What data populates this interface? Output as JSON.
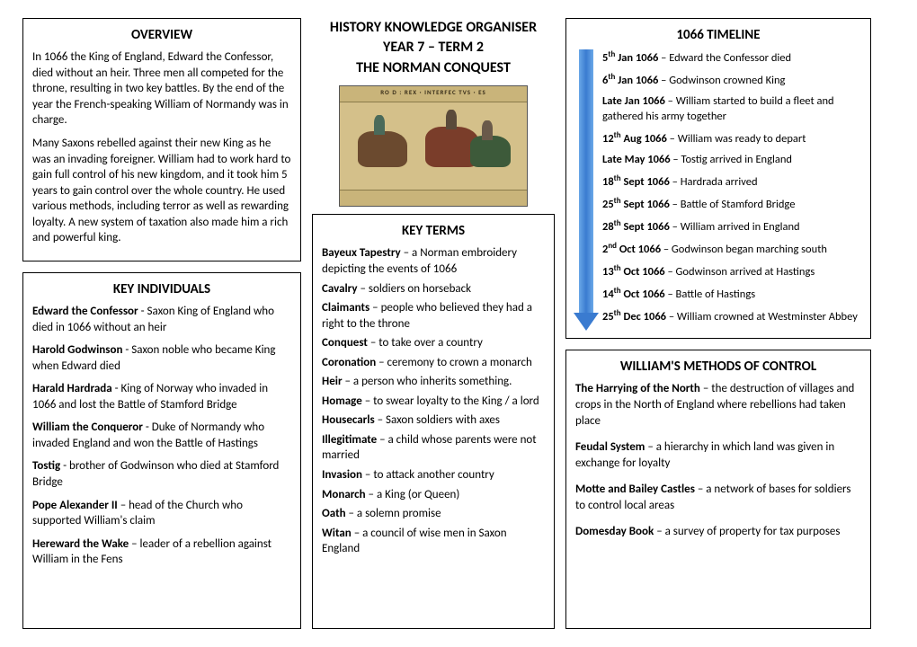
{
  "overview": {
    "heading": "OVERVIEW",
    "p1": "In 1066 the King of England, Edward the Confessor, died without an heir.  Three men all competed for the throne, resulting in two key battles.  By the end of the year the French-speaking William of Normandy was in charge.",
    "p2": "Many Saxons rebelled against their new King as he was an invading foreigner.  William had to work hard to gain full control of his new kingdom, and it took him 5 years to gain control over the whole country.  He used various methods, including terror as well as rewarding loyalty.  A new system of taxation also made him a rich and powerful king."
  },
  "title": {
    "l1": "HISTORY KNOWLEDGE ORGANISER",
    "l2": "YEAR 7 – TERM 2",
    "l3": "THE NORMAN CONQUEST",
    "tapestry_caption": "RO   D : REX · INTERFEC   TVS · ES"
  },
  "key_individuals": {
    "heading": "KEY INDIVIDUALS",
    "items": [
      {
        "n": "Edward the Confessor",
        "d": " - Saxon King of England who died in 1066 without an heir"
      },
      {
        "n": "Harold Godwinson",
        "d": " - Saxon noble who became King when Edward died"
      },
      {
        "n": "Harald Hardrada",
        "d": " - King of Norway who invaded in 1066 and lost the Battle of Stamford Bridge"
      },
      {
        "n": "William the Conqueror",
        "d": " - Duke of Normandy who invaded England and won the Battle of Hastings"
      },
      {
        "n": "Tostig",
        "d": " - brother of Godwinson who died at Stamford Bridge"
      },
      {
        "n": "Pope Alexander II",
        "d": " – head of the Church who supported William's claim"
      },
      {
        "n": "Hereward the Wake",
        "d": " – leader of a rebellion against William in the Fens"
      }
    ]
  },
  "key_terms": {
    "heading": "KEY TERMS",
    "items": [
      {
        "n": "Bayeux Tapestry",
        "d": " – a Norman embroidery depicting the events of 1066"
      },
      {
        "n": "Cavalry",
        "d": " – soldiers on horseback"
      },
      {
        "n": "Claimants",
        "d": " – people who believed they had a right to the throne"
      },
      {
        "n": "Conquest",
        "d": " – to take over a country"
      },
      {
        "n": "Coronation",
        "d": " – ceremony to crown a monarch"
      },
      {
        "n": "Heir",
        "d": " – a person who inherits something."
      },
      {
        "n": "Homage",
        "d": " – to swear loyalty to the King / a lord"
      },
      {
        "n": "Housecarls",
        "d": " – Saxon soldiers with axes"
      },
      {
        "n": "Illegitimate",
        "d": " – a child whose parents were not married"
      },
      {
        "n": "Invasion",
        "d": " – to attack another country"
      },
      {
        "n": "Monarch",
        "d": " – a King (or Queen)"
      },
      {
        "n": "Oath",
        "d": " – a solemn promise"
      },
      {
        "n": "Witan",
        "d": " – a council of wise men in Saxon England"
      }
    ]
  },
  "timeline": {
    "heading": "1066 TIMELINE",
    "items": [
      {
        "d": "5",
        "s": "th",
        "m": " Jan 1066",
        "t": " – Edward the Confessor died"
      },
      {
        "d": "6",
        "s": "th",
        "m": " Jan 1066",
        "t": " – Godwinson crowned King"
      },
      {
        "d": "Late Jan 1066",
        "s": "",
        "m": "",
        "t": " – William started to build a fleet and gathered his army together"
      },
      {
        "d": "12",
        "s": "th",
        "m": " Aug 1066",
        "t": " – William was ready to depart"
      },
      {
        "d": "Late May 1066",
        "s": "",
        "m": "",
        "t": " – Tostig arrived in England"
      },
      {
        "d": "18",
        "s": "th",
        "m": " Sept 1066",
        "t": " – Hardrada arrived"
      },
      {
        "d": "25",
        "s": "th",
        "m": " Sept 1066",
        "t": " – Battle of Stamford Bridge"
      },
      {
        "d": "28",
        "s": "th",
        "m": " Sept 1066",
        "t": " – William arrived in England"
      },
      {
        "d": "2",
        "s": "nd",
        "m": " Oct 1066",
        "t": " – Godwinson began marching south"
      },
      {
        "d": "13",
        "s": "th",
        "m": " Oct 1066",
        "t": " – Godwinson arrived at Hastings"
      },
      {
        "d": "14",
        "s": "th",
        "m": " Oct 1066",
        "t": " – Battle of Hastings"
      },
      {
        "d": "25",
        "s": "th",
        "m": " Dec 1066",
        "t": " – William crowned at Westminster Abbey"
      }
    ]
  },
  "methods": {
    "heading": "WILLIAM'S METHODS OF CONTROL",
    "items": [
      {
        "n": "The Harrying of the North",
        "d": " – the destruction of villages and crops in the North of England where rebellions had taken place"
      },
      {
        "n": "Feudal System",
        "d": " – a hierarchy in which land was given in exchange for loyalty"
      },
      {
        "n": "Motte and Bailey Castles",
        "d": " – a network of bases for soldiers to control local areas"
      },
      {
        "n": "Domesday Book",
        "d": " – a survey of property for tax purposes"
      }
    ]
  }
}
